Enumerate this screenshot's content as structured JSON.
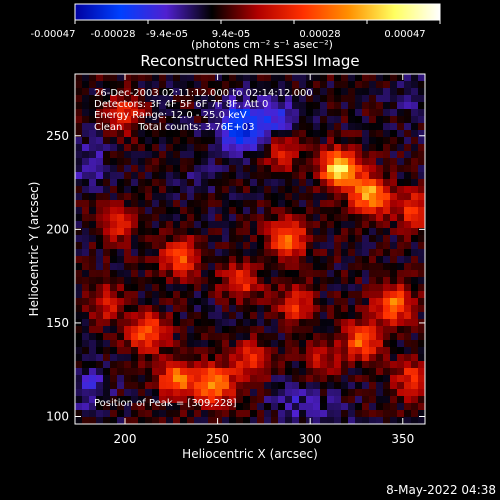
{
  "colorbar": {
    "ticks": [
      "-0.00047",
      "-0.00028",
      "-9.4e-05",
      "9.4e-05",
      "0.00028",
      "0.00047"
    ],
    "unit": "(photons cm⁻² s⁻¹ asec⁻²)",
    "range": [
      -0.00047,
      0.00047
    ],
    "stops": [
      "#0000a0",
      "#0040ff",
      "#5020d0",
      "#000000",
      "#b00000",
      "#ff3000",
      "#ff9000",
      "#ffff60",
      "#ffffff"
    ]
  },
  "image": {
    "title": "Reconstructed RHESSI Image",
    "annotations": [
      "26-Dec-2003 02:11:12.000 to 02:14:12.000",
      "Detectors: 3F 4F 5F 6F 7F 8F, Att 0",
      "Energy Range: 12.0 - 25.0 keV",
      "Clean     Total counts: 3.76E+03"
    ],
    "peak_label": "Position of Peak = [309,228]"
  },
  "footer": {
    "timestamp": "8-May-2022 04:38"
  },
  "chart_data": {
    "type": "heatmap",
    "title": "Reconstructed RHESSI Image",
    "xlabel": "Heliocentric X (arcsec)",
    "ylabel": "Heliocentric Y (arcsec)",
    "xlim": [
      173,
      362
    ],
    "ylim": [
      96,
      283
    ],
    "x_ticks": [
      200,
      250,
      300,
      350
    ],
    "y_ticks": [
      100,
      150,
      200,
      250
    ],
    "peak": {
      "x": 309,
      "y": 228
    },
    "hotspots": [
      {
        "x": 316,
        "y": 232,
        "value": 0.00047
      },
      {
        "x": 333,
        "y": 218,
        "value": 0.00038
      },
      {
        "x": 248,
        "y": 117,
        "value": 0.00035
      },
      {
        "x": 228,
        "y": 120,
        "value": 0.0003
      },
      {
        "x": 212,
        "y": 145,
        "value": 0.00028
      },
      {
        "x": 288,
        "y": 195,
        "value": 0.0003
      },
      {
        "x": 230,
        "y": 185,
        "value": 0.00025
      },
      {
        "x": 262,
        "y": 172,
        "value": 0.00022
      },
      {
        "x": 200,
        "y": 262,
        "value": 0.00018
      },
      {
        "x": 345,
        "y": 160,
        "value": 0.0003
      },
      {
        "x": 328,
        "y": 140,
        "value": 0.00028
      },
      {
        "x": 292,
        "y": 160,
        "value": 0.0002
      },
      {
        "x": 285,
        "y": 242,
        "value": 0.00018
      },
      {
        "x": 357,
        "y": 210,
        "value": 0.00022
      },
      {
        "x": 355,
        "y": 120,
        "value": 0.0002
      },
      {
        "x": 195,
        "y": 203,
        "value": 0.00018
      },
      {
        "x": 268,
        "y": 130,
        "value": 0.00022
      },
      {
        "x": 305,
        "y": 130,
        "value": 0.00015
      },
      {
        "x": 190,
        "y": 160,
        "value": 0.00015
      }
    ],
    "coldspots": [
      {
        "x": 262,
        "y": 255,
        "value": -0.0004
      },
      {
        "x": 283,
        "y": 260,
        "value": -0.00025
      },
      {
        "x": 180,
        "y": 235,
        "value": -0.0002
      },
      {
        "x": 180,
        "y": 115,
        "value": -0.00022
      },
      {
        "x": 290,
        "y": 110,
        "value": -0.0002
      },
      {
        "x": 310,
        "y": 100,
        "value": -0.00018
      },
      {
        "x": 240,
        "y": 230,
        "value": -0.00015
      },
      {
        "x": 355,
        "y": 270,
        "value": -0.00018
      },
      {
        "x": 250,
        "y": 155,
        "value": -0.00012
      },
      {
        "x": 320,
        "y": 195,
        "value": -0.0001
      }
    ]
  }
}
